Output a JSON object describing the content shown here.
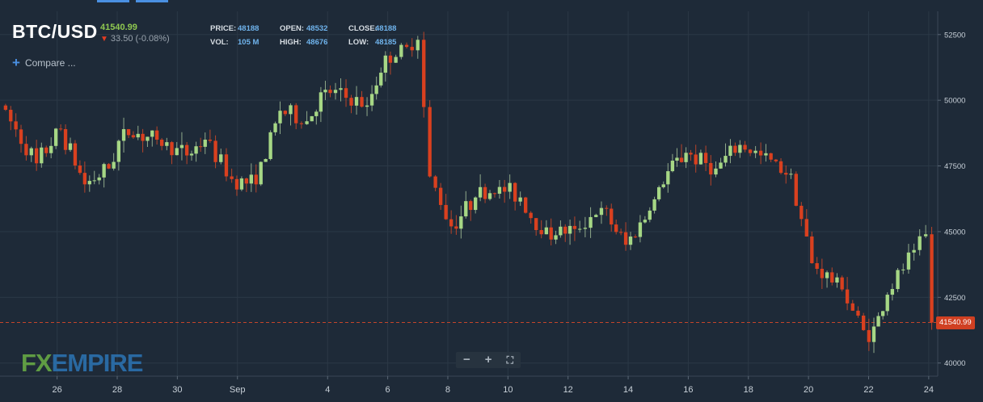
{
  "header": {
    "symbol": "BTC/USD",
    "current_price": "41540.99",
    "change": "33.50 (-0.08%)",
    "change_direction_icon": "down-arrow-icon"
  },
  "ohlc": {
    "price_label": "PRICE:",
    "price": "48188",
    "open_label": "OPEN:",
    "open": "48532",
    "close_label": "CLOSE:",
    "close": "48188",
    "vol_label": "VOL:",
    "vol": "105 M",
    "high_label": "HIGH:",
    "high": "48676",
    "low_label": "LOW:",
    "low": "48185"
  },
  "compare_label": "Compare ...",
  "logo": {
    "fx": "FX",
    "empire": "EMPIRE"
  },
  "zoom": {
    "minus": "−",
    "plus": "+",
    "fullscreen": "⛶"
  },
  "current_price_tag": "41540.99",
  "colors": {
    "up": "#a6d785",
    "down": "#d9401f",
    "background": "#1e2a38",
    "grid": "#2b3846",
    "axis_text": "#c8d0d8"
  },
  "chart_data": {
    "type": "candlestick",
    "symbol": "BTC/USD",
    "y_ticks": [
      40000,
      42500,
      45000,
      47500,
      50000,
      52500
    ],
    "ylim": [
      39500,
      53200
    ],
    "x_ticks": [
      {
        "label": "26",
        "day": 26
      },
      {
        "label": "28",
        "day": 28
      },
      {
        "label": "30",
        "day": 30
      },
      {
        "label": "Sep",
        "day": 32
      },
      {
        "label": "4",
        "day": 35
      },
      {
        "label": "6",
        "day": 37
      },
      {
        "label": "8",
        "day": 39
      },
      {
        "label": "10",
        "day": 41
      },
      {
        "label": "12",
        "day": 43
      },
      {
        "label": "14",
        "day": 45
      },
      {
        "label": "16",
        "day": 47
      },
      {
        "label": "18",
        "day": 49
      },
      {
        "label": "20",
        "day": 51
      },
      {
        "label": "22",
        "day": 53
      },
      {
        "label": "24",
        "day": 55
      }
    ],
    "xlim": [
      24.1,
      55.3
    ],
    "current_price": 41540.99,
    "segments": [
      {
        "start": 24.2,
        "end": 25.4,
        "from": 49800,
        "to": 47600
      },
      {
        "start": 25.4,
        "end": 26.2,
        "from": 47600,
        "to": 48900
      },
      {
        "start": 26.2,
        "end": 27.0,
        "from": 48900,
        "to": 46800
      },
      {
        "start": 27.0,
        "end": 27.8,
        "from": 46800,
        "to": 47400
      },
      {
        "start": 27.8,
        "end": 28.3,
        "from": 47400,
        "to": 48900
      },
      {
        "start": 28.3,
        "end": 29.4,
        "from": 48900,
        "to": 48500
      },
      {
        "start": 29.4,
        "end": 30.4,
        "from": 48500,
        "to": 47900
      },
      {
        "start": 30.4,
        "end": 31.0,
        "from": 47900,
        "to": 48500
      },
      {
        "start": 31.0,
        "end": 31.9,
        "from": 48500,
        "to": 47000
      },
      {
        "start": 31.9,
        "end": 32.7,
        "from": 47000,
        "to": 46800
      },
      {
        "start": 32.7,
        "end": 33.5,
        "from": 46800,
        "to": 49600
      },
      {
        "start": 33.5,
        "end": 34.4,
        "from": 49600,
        "to": 49200
      },
      {
        "start": 34.4,
        "end": 35.0,
        "from": 49200,
        "to": 50400
      },
      {
        "start": 35.0,
        "end": 36.4,
        "from": 50400,
        "to": 49800
      },
      {
        "start": 36.4,
        "end": 37.0,
        "from": 49800,
        "to": 51700
      },
      {
        "start": 37.0,
        "end": 37.9,
        "from": 51700,
        "to": 51900
      },
      {
        "start": 37.9,
        "end": 38.1,
        "from": 52600,
        "to": 52300
      },
      {
        "start": 38.1,
        "end": 38.5,
        "from": 52300,
        "to": 47100
      },
      {
        "start": 38.5,
        "end": 39.2,
        "from": 47100,
        "to": 45200
      },
      {
        "start": 39.2,
        "end": 40.0,
        "from": 45200,
        "to": 46300
      },
      {
        "start": 40.0,
        "end": 40.8,
        "from": 46300,
        "to": 46700
      },
      {
        "start": 40.8,
        "end": 41.5,
        "from": 46700,
        "to": 46300
      },
      {
        "start": 41.5,
        "end": 42.2,
        "from": 46300,
        "to": 44900
      },
      {
        "start": 42.2,
        "end": 43.3,
        "from": 44900,
        "to": 45100
      },
      {
        "start": 43.3,
        "end": 44.2,
        "from": 45100,
        "to": 45900
      },
      {
        "start": 44.2,
        "end": 45.0,
        "from": 45900,
        "to": 44500
      },
      {
        "start": 45.0,
        "end": 45.8,
        "from": 44500,
        "to": 45800
      },
      {
        "start": 45.8,
        "end": 46.4,
        "from": 45800,
        "to": 47300
      },
      {
        "start": 46.4,
        "end": 47.0,
        "from": 47300,
        "to": 48000
      },
      {
        "start": 47.0,
        "end": 48.0,
        "from": 48000,
        "to": 47400
      },
      {
        "start": 48.0,
        "end": 48.8,
        "from": 47400,
        "to": 48300
      },
      {
        "start": 48.8,
        "end": 49.5,
        "from": 48300,
        "to": 47900
      },
      {
        "start": 49.5,
        "end": 50.5,
        "from": 47900,
        "to": 47200
      },
      {
        "start": 50.5,
        "end": 51.2,
        "from": 47200,
        "to": 43800
      },
      {
        "start": 51.2,
        "end": 52.2,
        "from": 43800,
        "to": 42800
      },
      {
        "start": 52.2,
        "end": 53.1,
        "from": 42800,
        "to": 40800
      },
      {
        "start": 53.1,
        "end": 53.7,
        "from": 40800,
        "to": 42600
      },
      {
        "start": 53.7,
        "end": 54.6,
        "from": 42600,
        "to": 44300
      },
      {
        "start": 54.6,
        "end": 55.0,
        "from": 44300,
        "to": 44900
      },
      {
        "start": 55.0,
        "end": 55.2,
        "from": 44900,
        "to": 41540
      }
    ]
  }
}
